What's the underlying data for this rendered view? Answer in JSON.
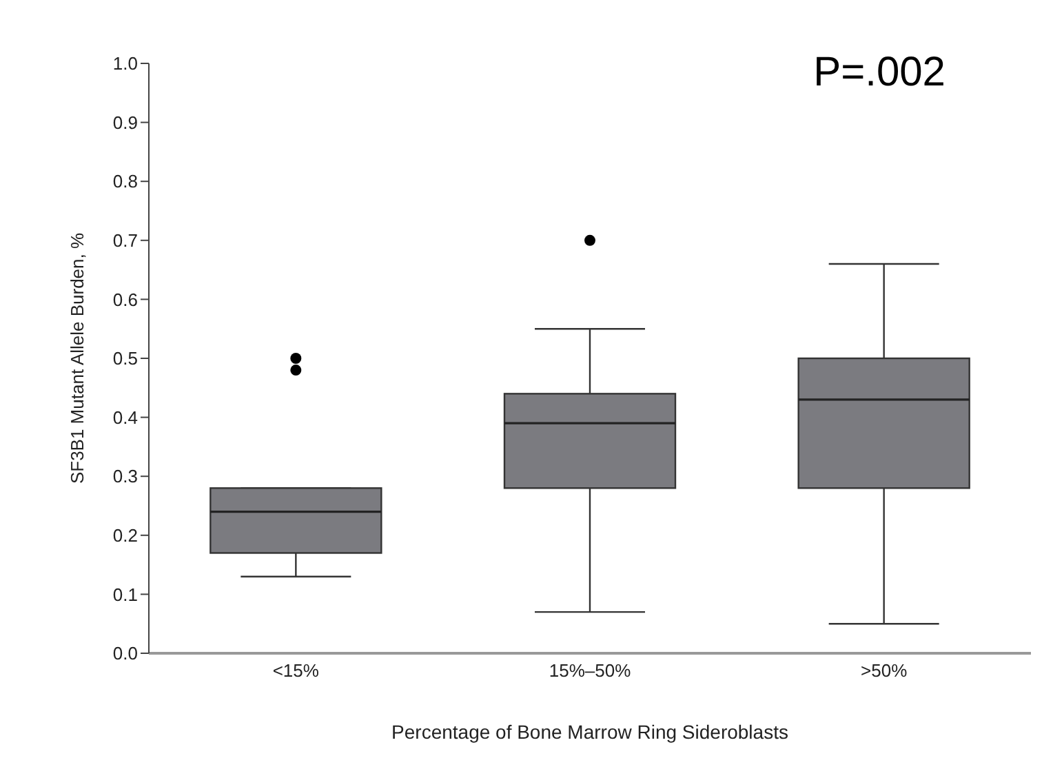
{
  "chart_data": {
    "type": "box",
    "categories": [
      "<15%",
      "15%–50%",
      ">50%"
    ],
    "boxes": [
      {
        "low": 0.13,
        "q1": 0.17,
        "median": 0.24,
        "q3": 0.28,
        "high": 0.28,
        "outliers": [
          0.48,
          0.5
        ]
      },
      {
        "low": 0.07,
        "q1": 0.28,
        "median": 0.39,
        "q3": 0.44,
        "high": 0.55,
        "outliers": [
          0.7
        ]
      },
      {
        "low": 0.05,
        "q1": 0.28,
        "median": 0.43,
        "q3": 0.5,
        "high": 0.66
      }
    ],
    "color": "#7b7b80",
    "xlabel": "Percentage of Bone Marrow Ring Sideroblasts",
    "ylabel": "SF3B1 Mutant Allele Burden, %",
    "ylim": [
      0,
      1
    ],
    "yticks": [
      {
        "value": 0,
        "label": "0.0"
      },
      {
        "value": 0.1,
        "label": "0.1"
      },
      {
        "value": 0.2,
        "label": "0.2"
      },
      {
        "value": 0.3,
        "label": "0.3"
      },
      {
        "value": 0.4,
        "label": "0.4"
      },
      {
        "value": 0.5,
        "label": "0.5"
      },
      {
        "value": 0.6,
        "label": "0.6"
      },
      {
        "value": 0.7,
        "label": "0.7"
      },
      {
        "value": 0.8,
        "label": "0.8"
      },
      {
        "value": 0.9,
        "label": "0.9"
      },
      {
        "value": 1,
        "label": "1.0"
      }
    ],
    "annotations": [
      "P=.002"
    ]
  }
}
